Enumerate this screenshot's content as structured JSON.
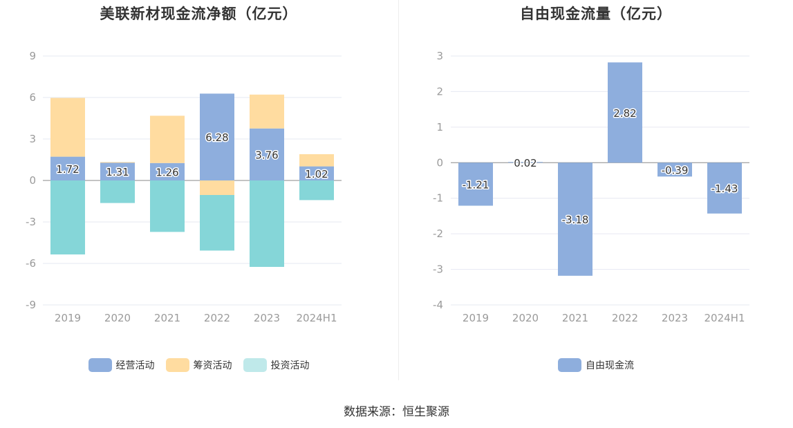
{
  "colors": {
    "operating": "#8eaedd",
    "financing": "#ffdca0",
    "investing": "#85d6d8",
    "fcf": "#8eaedd",
    "grid": "#e6e8f2",
    "zero_axis": "#888888",
    "tick_text": "#9a9a9a"
  },
  "source": "数据来源：恒生聚源",
  "chart_data": [
    {
      "type": "bar",
      "stacked": true,
      "title": "美联新材现金流净额（亿元）",
      "categories": [
        "2019",
        "2020",
        "2021",
        "2022",
        "2023",
        "2024H1"
      ],
      "ylim": [
        -9,
        9
      ],
      "yticks": [
        9,
        6,
        3,
        0,
        -3,
        -6,
        -9
      ],
      "grid": true,
      "legend_position": "bottom",
      "series": [
        {
          "name": "经营活动",
          "values": [
            1.72,
            1.31,
            1.26,
            6.28,
            3.76,
            1.02
          ],
          "labels": [
            "1.72",
            "1.31",
            "1.26",
            "6.28",
            "3.76",
            "1.02"
          ]
        },
        {
          "name": "筹资活动",
          "values": [
            4.25,
            0.02,
            3.42,
            -1.05,
            2.45,
            0.88
          ]
        },
        {
          "name": "投资活动",
          "values": [
            -5.35,
            -1.63,
            -3.72,
            -4.02,
            -6.25,
            -1.42
          ]
        }
      ]
    },
    {
      "type": "bar",
      "title": "自由现金流量（亿元）",
      "categories": [
        "2019",
        "2020",
        "2021",
        "2022",
        "2023",
        "2024H1"
      ],
      "ylim": [
        -4,
        3
      ],
      "yticks": [
        3,
        2,
        1,
        0,
        -1,
        -2,
        -3,
        -4
      ],
      "grid": true,
      "legend_position": "bottom",
      "series": [
        {
          "name": "自由现金流",
          "values": [
            -1.21,
            0.02,
            -3.18,
            2.82,
            -0.39,
            -1.43
          ],
          "labels": [
            "-1.21",
            "0.02",
            "-3.18",
            "2.82",
            "-0.39",
            "-1.43"
          ]
        }
      ]
    }
  ]
}
